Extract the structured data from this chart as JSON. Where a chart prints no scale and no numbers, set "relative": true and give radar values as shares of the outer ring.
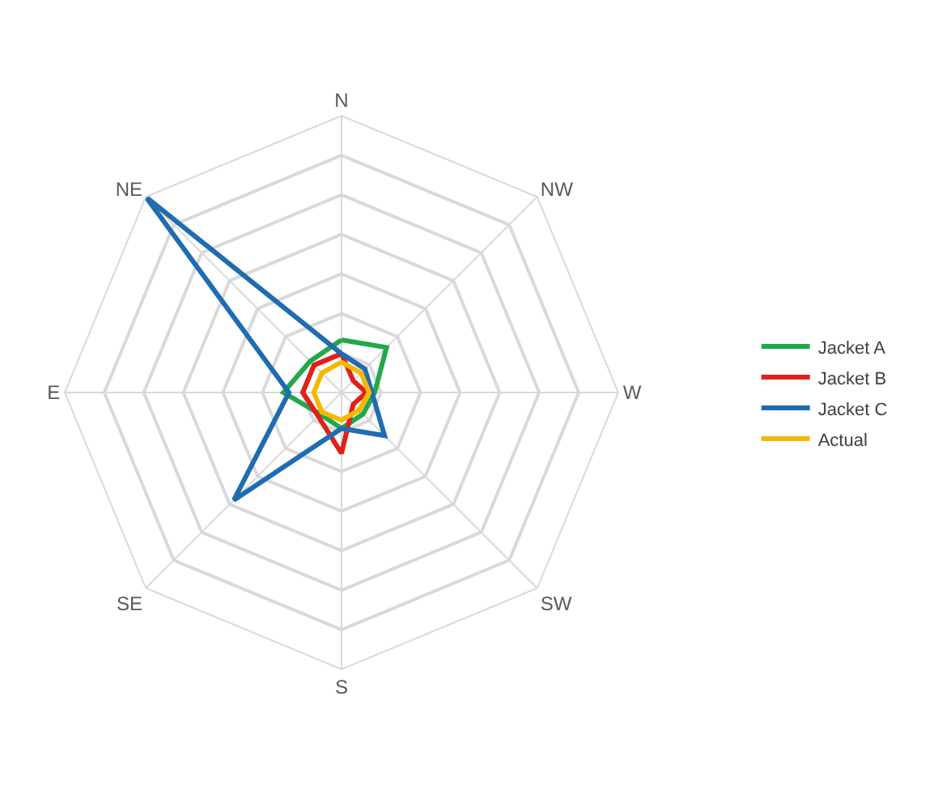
{
  "chart_data": {
    "type": "radar",
    "relative": true,
    "grid": true,
    "legend": "right",
    "marker": "none",
    "categories": [
      "N",
      "NW",
      "W",
      "SW",
      "S",
      "SE",
      "E",
      "NE"
    ],
    "series": [
      {
        "name": "Jacket A",
        "color": "#21a84a",
        "values": [
          0.19,
          0.23,
          0.12,
          0.11,
          0.13,
          0.11,
          0.21,
          0.16
        ]
      },
      {
        "name": "Jacket B",
        "color": "#e0201b",
        "values": [
          0.14,
          0.06,
          0.09,
          0.06,
          0.22,
          0.12,
          0.14,
          0.14
        ]
      },
      {
        "name": "Jacket C",
        "color": "#1f6cb0",
        "values": [
          0.14,
          0.12,
          0.11,
          0.22,
          0.13,
          0.55,
          0.19,
          1.0
        ]
      },
      {
        "name": "Actual",
        "color": "#f5b800",
        "values": [
          0.11,
          0.1,
          0.1,
          0.09,
          0.1,
          0.1,
          0.1,
          0.1
        ]
      }
    ]
  }
}
